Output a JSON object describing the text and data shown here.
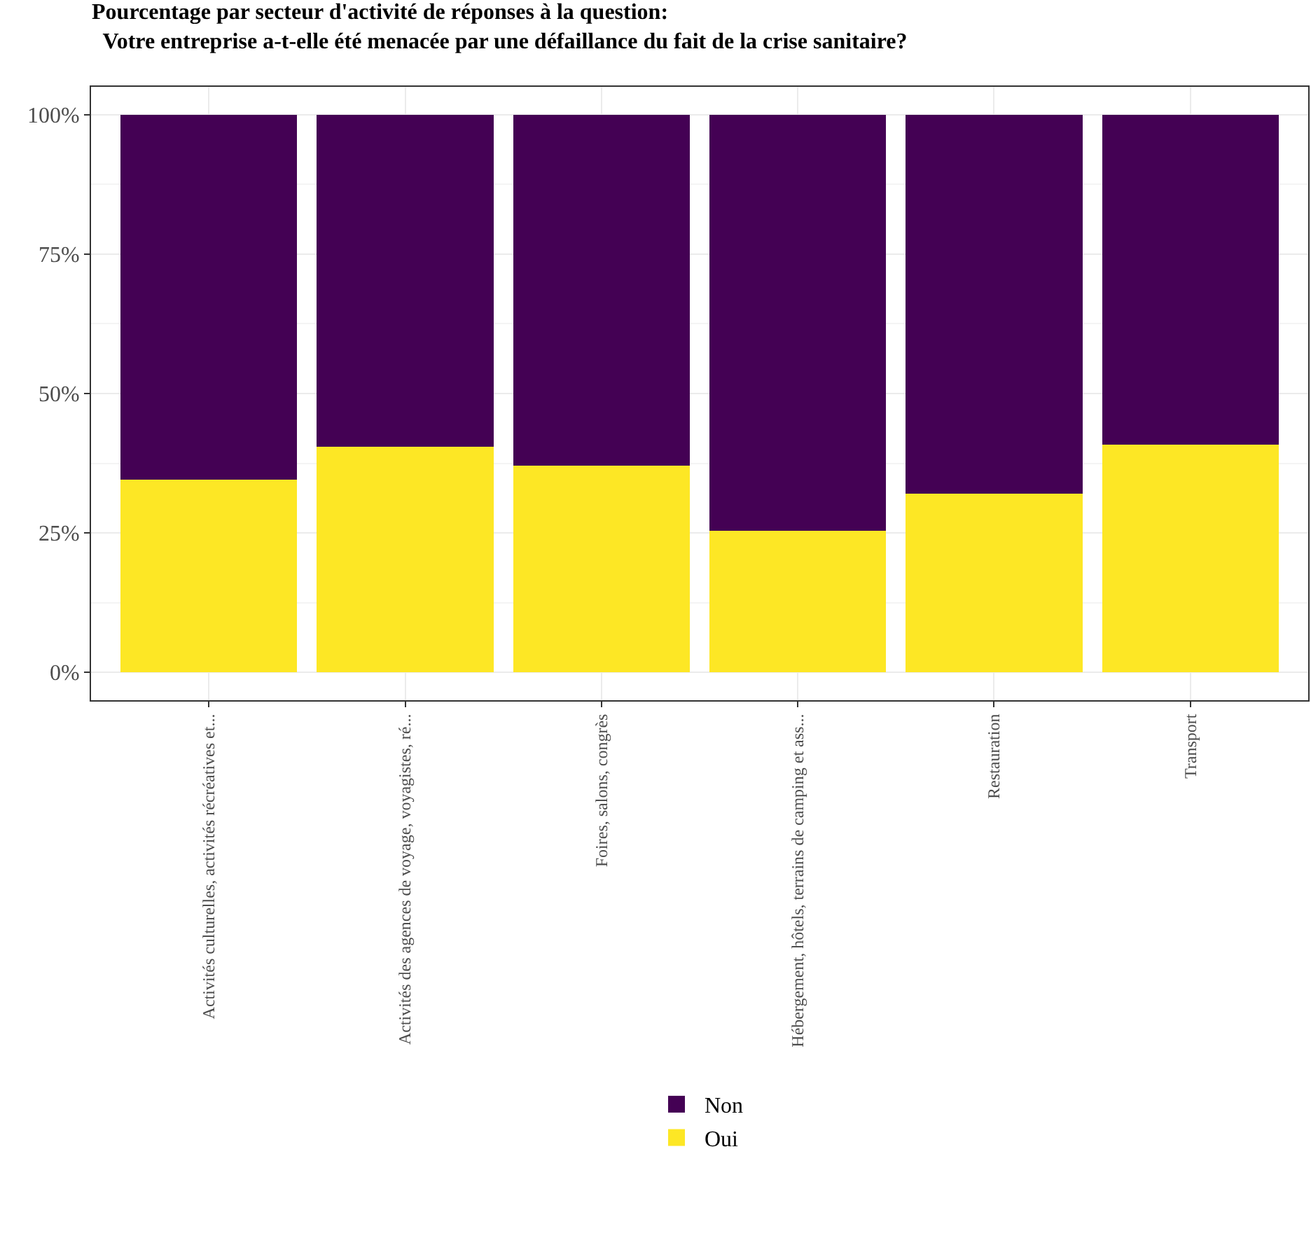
{
  "chart_data": {
    "type": "bar",
    "title": "Pourcentage par secteur d'activité de réponses à la question:\n  Votre entreprise a-t-elle été menacée par une défaillance du fait de la crise sanitaire?",
    "categories": [
      "Activités culturelles, activités récréatives et...",
      "Activités des agences de voyage, voyagistes, ré...",
      "Foires, salons, congrès",
      "Hébergement, hôtels, terrains de camping et ass...",
      "Restauration",
      "Transport"
    ],
    "series": [
      {
        "name": "Oui",
        "color": "#fde725",
        "values": [
          34.6,
          40.5,
          37.1,
          25.4,
          32.1,
          40.8
        ]
      },
      {
        "name": "Non",
        "color": "#440154",
        "values": [
          65.4,
          59.5,
          62.9,
          74.6,
          67.9,
          59.2
        ]
      }
    ],
    "stacked": true,
    "ylim": [
      -5,
      105
    ],
    "yticks": [
      {
        "value": 0,
        "label": "0%"
      },
      {
        "value": 25,
        "label": "25%"
      },
      {
        "value": 50,
        "label": "50%"
      },
      {
        "value": 75,
        "label": "75%"
      },
      {
        "value": 100,
        "label": "100%"
      }
    ],
    "grid": true,
    "legend": "bottom"
  }
}
